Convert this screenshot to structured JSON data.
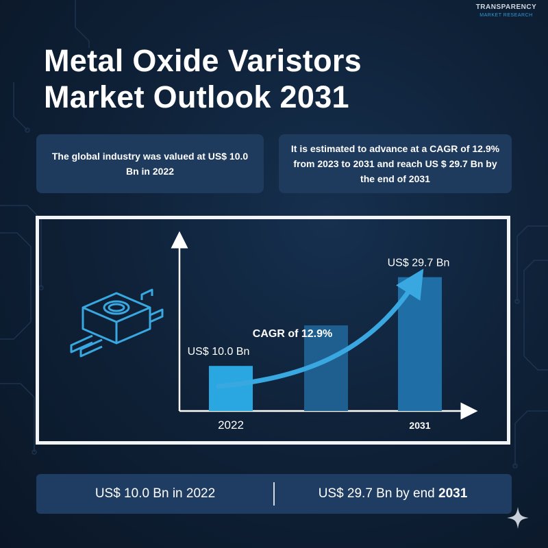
{
  "brand": {
    "logo_line1": "TRANSPARENCY",
    "logo_line2": "MARKET RESEARCH"
  },
  "header": {
    "title_line1": "Metal Oxide Varistors",
    "title_line2": "Market Outlook 2031"
  },
  "cards": {
    "left_text": "The global industry was valued at US$ 10.0 Bn in 2022",
    "right_text": "It is estimated to advance at a CAGR of 12.9% from 2023 to 2031 and reach US $ 29.7 Bn by the end of 2031"
  },
  "chart_data": {
    "type": "bar",
    "categories": [
      "2022",
      "",
      "2031"
    ],
    "values": [
      10.0,
      19.0,
      29.7
    ],
    "ylim": [
      0,
      38
    ],
    "data_labels": [
      "US$ 10.0 Bn",
      "",
      "US$ 29.7 Bn"
    ],
    "annotation": "CAGR of 12.9%",
    "bar_colors": [
      "#2aa7e0",
      "#1e5f8f",
      "#1f6ea6"
    ],
    "arrow_color": "#3aa8e0",
    "grid": false
  },
  "footer": {
    "left_text": "US$ 10.0 Bn in 2022",
    "right_prefix": "US$ 29.7 Bn by end ",
    "right_year": "2031"
  },
  "colors": {
    "background": "#0f2239",
    "card": "#1e3a5c",
    "accent": "#2aa7e0"
  }
}
